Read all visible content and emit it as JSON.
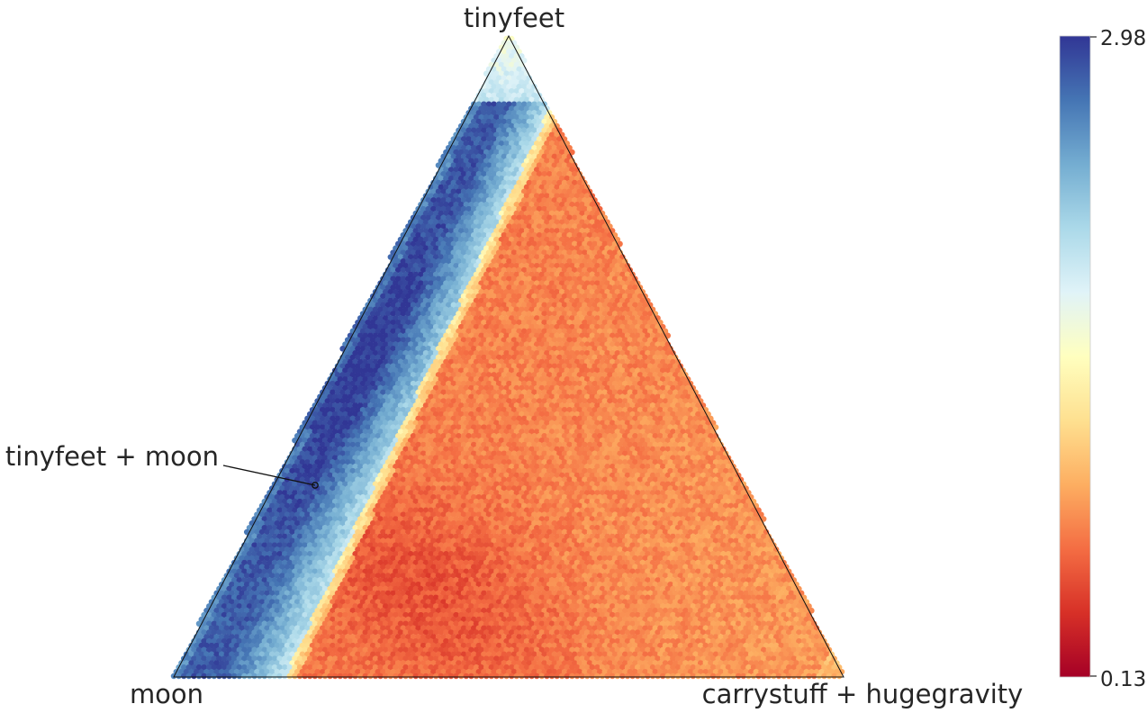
{
  "chart_data": {
    "type": "heatmap",
    "subtype": "ternary-hexbin",
    "vertex_labels": {
      "top": "tinyfeet",
      "bottom_left": "moon",
      "bottom_right": "carrystuff + hugegravity"
    },
    "annotation": {
      "text": "tinyfeet + moon",
      "point": {
        "tinyfeet": 0.5,
        "moon": 0.5,
        "carrystuff + hugegravity": 0.0
      }
    },
    "colorbar": {
      "cmap": "RdYlBu",
      "min": 0.13,
      "max": 2.98,
      "min_label": "0.13",
      "max_label": "2.98",
      "colors": [
        "#a50026",
        "#d73027",
        "#f46d43",
        "#fdae61",
        "#fee090",
        "#ffffbf",
        "#e0f3f8",
        "#abd9e9",
        "#74add1",
        "#4575b4",
        "#313695"
      ]
    },
    "field_description": {
      "high_band": "along moon–tinyfeet edge (tinyfeet + moon mixtures)",
      "low_region": "interior and carrystuff + hugegravity side"
    },
    "grid": false
  }
}
